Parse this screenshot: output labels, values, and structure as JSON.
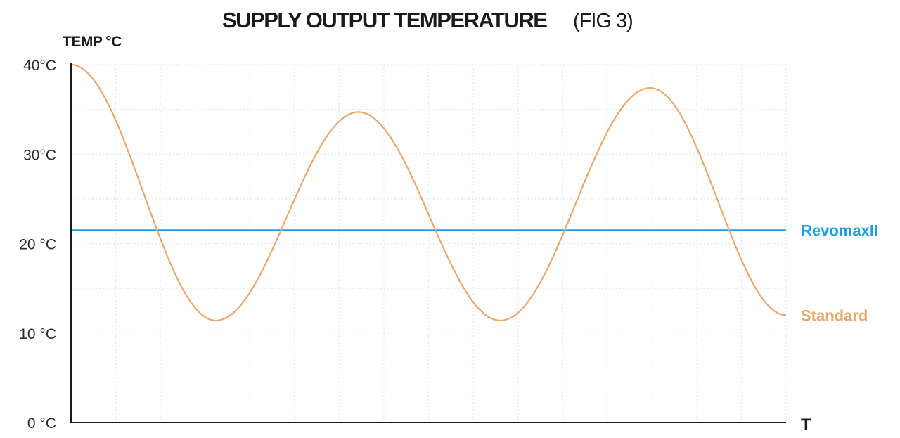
{
  "chart_data": {
    "type": "line",
    "title": "SUPPLY OUTPUT TEMPERATURE",
    "subtitle": "(FIG 3)",
    "ylabel": "TEMP °C",
    "xlabel": "T",
    "ylim": [
      0,
      40
    ],
    "xlim": [
      0,
      16
    ],
    "y_ticks": [
      {
        "value": 0,
        "label": "0 °C"
      },
      {
        "value": 10,
        "label": "10 °C"
      },
      {
        "value": 20,
        "label": "20 °C"
      },
      {
        "value": 30,
        "label": "30°C"
      },
      {
        "value": 40,
        "label": "40°C"
      }
    ],
    "grid": true,
    "legend_placement": "right (inline at line ends)",
    "series": [
      {
        "name": "RevomaxII",
        "color": "#1ba1e2",
        "x": [
          0,
          16
        ],
        "y": [
          21.5,
          21.5
        ]
      },
      {
        "name": "Standard",
        "color": "#e8a86e",
        "x": [
          0,
          3.24,
          6.43,
          9.61,
          12.96,
          16
        ],
        "y": [
          40,
          11.4,
          34.7,
          11.4,
          37.4,
          12.0
        ]
      }
    ]
  }
}
